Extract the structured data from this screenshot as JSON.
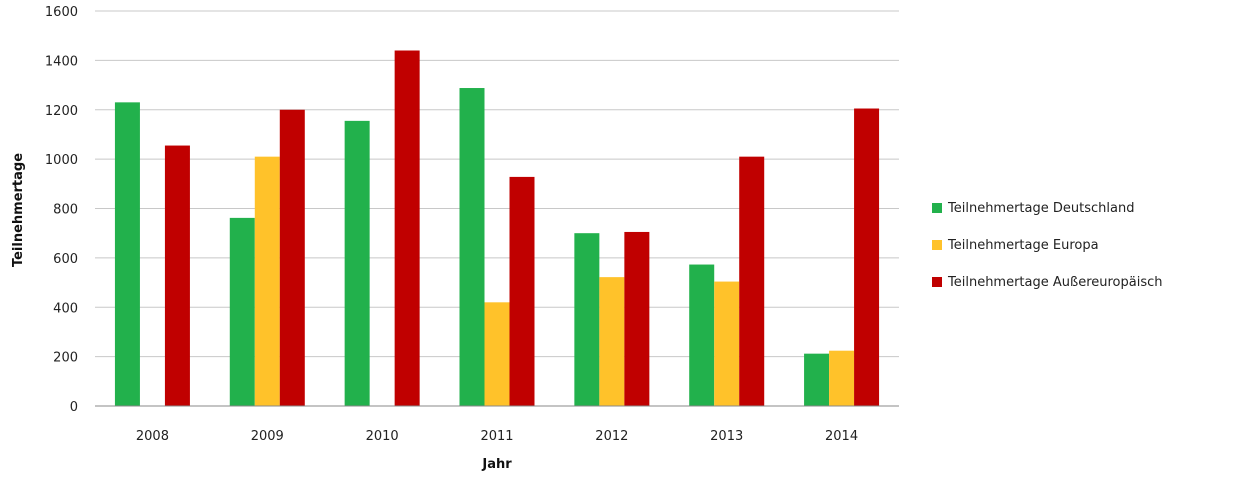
{
  "chart_data": {
    "type": "bar",
    "categories": [
      "2008",
      "2009",
      "2010",
      "2011",
      "2012",
      "2013",
      "2014"
    ],
    "series": [
      {
        "name": "Teilnehmertage Deutschland",
        "color": "#22b14c",
        "values": [
          1230,
          762,
          1155,
          1288,
          700,
          573,
          212
        ]
      },
      {
        "name": "Teilnehmertage Europa",
        "color": "#ffc22a",
        "values": [
          0,
          1010,
          0,
          420,
          522,
          504,
          224
        ]
      },
      {
        "name": "Teilnehmertage Außereuropäisch",
        "color": "#c00000",
        "values": [
          1055,
          1200,
          1440,
          928,
          705,
          1010,
          1205
        ]
      }
    ],
    "xlabel": "Jahr",
    "ylabel": "Teilnehmertage",
    "ylim": [
      0,
      1600
    ],
    "yticks": [
      "0",
      "200",
      "400",
      "600",
      "800",
      "1000",
      "1200",
      "1400",
      "1600"
    ],
    "grid": true,
    "legend_position": "right"
  }
}
